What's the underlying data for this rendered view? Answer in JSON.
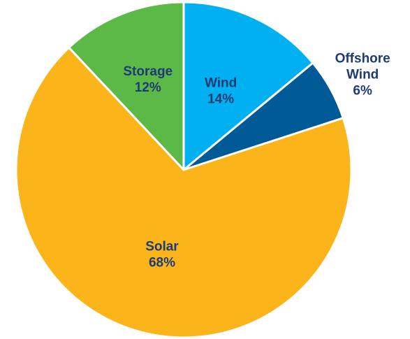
{
  "chart_data": {
    "type": "pie",
    "title": "",
    "start_angle_deg": 0,
    "direction": "clockwise",
    "legend": "none",
    "slices": [
      {
        "name": "Wind",
        "value": 14,
        "label_lines": [
          "Wind",
          "14%"
        ],
        "color": "#00b0f0",
        "label_color": "#1f3b73",
        "label_position": "inside"
      },
      {
        "name": "Offshore Wind",
        "value": 6,
        "label_lines": [
          "Offshore",
          "Wind",
          "6%"
        ],
        "color": "#005a96",
        "label_color": "#1f3b73",
        "label_position": "outside"
      },
      {
        "name": "Solar",
        "value": 68,
        "label_lines": [
          "Solar",
          "68%"
        ],
        "color": "#fbb41a",
        "label_color": "#1f3b73",
        "label_position": "inside"
      },
      {
        "name": "Storage",
        "value": 12,
        "label_lines": [
          "Storage",
          "12%"
        ],
        "color": "#5cb947",
        "label_color": "#1f3b73",
        "label_position": "inside"
      }
    ]
  }
}
